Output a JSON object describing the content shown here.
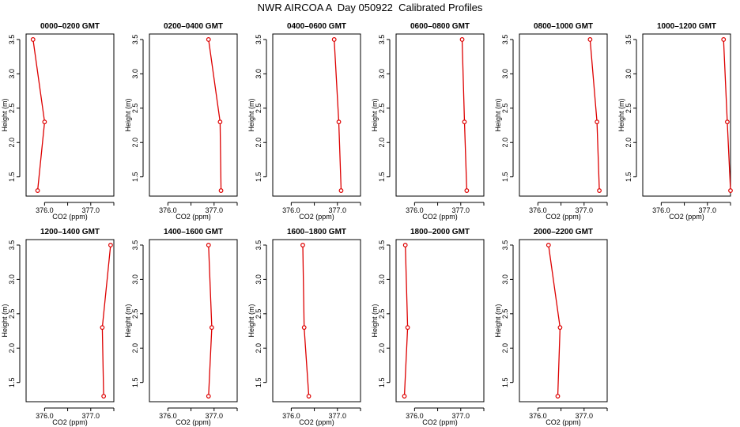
{
  "title": "NWR AIRCOA A  Day 050922  Calibrated Profiles",
  "chart_data": [
    {
      "type": "line",
      "title": "0000–0200 GMT",
      "xlabel": "CO2 (ppm)",
      "ylabel": "Height (m)",
      "xlim": [
        375.6,
        377.5
      ],
      "ylim": [
        1.22,
        3.58
      ],
      "x_ticks": [
        376.0,
        376.5,
        377.0,
        377.5
      ],
      "x_tick_labels": [
        "376.0",
        "",
        "377.0",
        ""
      ],
      "y_ticks": [
        1.5,
        2.0,
        2.5,
        3.0,
        3.5
      ],
      "y_tick_labels": [
        "1.5",
        "2.0",
        "2.5",
        "3.0",
        "3.5"
      ],
      "series": [
        {
          "name": "profile",
          "x": [
            375.85,
            376.0,
            375.75
          ],
          "y": [
            1.3,
            2.3,
            3.5
          ]
        }
      ]
    },
    {
      "type": "line",
      "title": "0200–0400 GMT",
      "xlabel": "CO2 (ppm)",
      "ylabel": "Height (m)",
      "xlim": [
        375.6,
        377.5
      ],
      "ylim": [
        1.22,
        3.58
      ],
      "x_ticks": [
        376.0,
        376.5,
        377.0,
        377.5
      ],
      "x_tick_labels": [
        "376.0",
        "",
        "377.0",
        ""
      ],
      "y_ticks": [
        1.5,
        2.0,
        2.5,
        3.0,
        3.5
      ],
      "y_tick_labels": [
        "1.5",
        "2.0",
        "2.5",
        "3.0",
        "3.5"
      ],
      "series": [
        {
          "name": "profile",
          "x": [
            377.15,
            377.13,
            376.88
          ],
          "y": [
            1.3,
            2.3,
            3.5
          ]
        }
      ]
    },
    {
      "type": "line",
      "title": "0400–0600 GMT",
      "xlabel": "CO2 (ppm)",
      "ylabel": "Height (m)",
      "xlim": [
        375.6,
        377.5
      ],
      "ylim": [
        1.22,
        3.58
      ],
      "x_ticks": [
        376.0,
        376.5,
        377.0,
        377.5
      ],
      "x_tick_labels": [
        "376.0",
        "",
        "377.0",
        ""
      ],
      "y_ticks": [
        1.5,
        2.0,
        2.5,
        3.0,
        3.5
      ],
      "y_tick_labels": [
        "1.5",
        "2.0",
        "2.5",
        "3.0",
        "3.5"
      ],
      "series": [
        {
          "name": "profile",
          "x": [
            377.08,
            377.03,
            376.93
          ],
          "y": [
            1.3,
            2.3,
            3.5
          ]
        }
      ]
    },
    {
      "type": "line",
      "title": "0600–0800 GMT",
      "xlabel": "CO2 (ppm)",
      "ylabel": "Height (m)",
      "xlim": [
        375.6,
        377.5
      ],
      "ylim": [
        1.22,
        3.58
      ],
      "x_ticks": [
        376.0,
        376.5,
        377.0,
        377.5
      ],
      "x_tick_labels": [
        "376.0",
        "",
        "377.0",
        ""
      ],
      "y_ticks": [
        1.5,
        2.0,
        2.5,
        3.0,
        3.5
      ],
      "y_tick_labels": [
        "1.5",
        "2.0",
        "2.5",
        "3.0",
        "3.5"
      ],
      "series": [
        {
          "name": "profile",
          "x": [
            377.13,
            377.08,
            377.03
          ],
          "y": [
            1.3,
            2.3,
            3.5
          ]
        }
      ]
    },
    {
      "type": "line",
      "title": "0800–1000 GMT",
      "xlabel": "CO2 (ppm)",
      "ylabel": "Height (m)",
      "xlim": [
        375.6,
        377.5
      ],
      "ylim": [
        1.22,
        3.58
      ],
      "x_ticks": [
        376.0,
        376.5,
        377.0,
        377.5
      ],
      "x_tick_labels": [
        "376.0",
        "",
        "377.0",
        ""
      ],
      "y_ticks": [
        1.5,
        2.0,
        2.5,
        3.0,
        3.5
      ],
      "y_tick_labels": [
        "1.5",
        "2.0",
        "2.5",
        "3.0",
        "3.5"
      ],
      "series": [
        {
          "name": "profile",
          "x": [
            377.33,
            377.28,
            377.13
          ],
          "y": [
            1.3,
            2.3,
            3.5
          ]
        }
      ]
    },
    {
      "type": "line",
      "title": "1000–1200 GMT",
      "xlabel": "CO2 (ppm)",
      "ylabel": "Height (m)",
      "xlim": [
        375.6,
        377.5
      ],
      "ylim": [
        1.22,
        3.58
      ],
      "x_ticks": [
        376.0,
        376.5,
        377.0,
        377.5
      ],
      "x_tick_labels": [
        "376.0",
        "",
        "377.0",
        ""
      ],
      "y_ticks": [
        1.5,
        2.0,
        2.5,
        3.0,
        3.5
      ],
      "y_tick_labels": [
        "1.5",
        "2.0",
        "2.5",
        "3.0",
        "3.5"
      ],
      "series": [
        {
          "name": "profile",
          "x": [
            377.5,
            377.43,
            377.35
          ],
          "y": [
            1.3,
            2.3,
            3.5
          ]
        }
      ]
    },
    {
      "type": "line",
      "title": "1200–1400 GMT",
      "xlabel": "CO2 (ppm)",
      "ylabel": "Height (m)",
      "xlim": [
        375.6,
        377.5
      ],
      "ylim": [
        1.22,
        3.58
      ],
      "x_ticks": [
        376.0,
        376.5,
        377.0,
        377.5
      ],
      "x_tick_labels": [
        "376.0",
        "",
        "377.0",
        ""
      ],
      "y_ticks": [
        1.5,
        2.0,
        2.5,
        3.0,
        3.5
      ],
      "y_tick_labels": [
        "1.5",
        "2.0",
        "2.5",
        "3.0",
        "3.5"
      ],
      "series": [
        {
          "name": "profile",
          "x": [
            377.28,
            377.25,
            377.43
          ],
          "y": [
            1.3,
            2.3,
            3.5
          ]
        }
      ]
    },
    {
      "type": "line",
      "title": "1400–1600 GMT",
      "xlabel": "CO2 (ppm)",
      "ylabel": "Height (m)",
      "xlim": [
        375.6,
        377.5
      ],
      "ylim": [
        1.22,
        3.58
      ],
      "x_ticks": [
        376.0,
        376.5,
        377.0,
        377.5
      ],
      "x_tick_labels": [
        "376.0",
        "",
        "377.0",
        ""
      ],
      "y_ticks": [
        1.5,
        2.0,
        2.5,
        3.0,
        3.5
      ],
      "y_tick_labels": [
        "1.5",
        "2.0",
        "2.5",
        "3.0",
        "3.5"
      ],
      "series": [
        {
          "name": "profile",
          "x": [
            376.88,
            376.95,
            376.88
          ],
          "y": [
            1.3,
            2.3,
            3.5
          ]
        }
      ]
    },
    {
      "type": "line",
      "title": "1600–1800 GMT",
      "xlabel": "CO2 (ppm)",
      "ylabel": "Height (m)",
      "xlim": [
        375.6,
        377.5
      ],
      "ylim": [
        1.22,
        3.58
      ],
      "x_ticks": [
        376.0,
        376.5,
        377.0,
        377.5
      ],
      "x_tick_labels": [
        "376.0",
        "",
        "377.0",
        ""
      ],
      "y_ticks": [
        1.5,
        2.0,
        2.5,
        3.0,
        3.5
      ],
      "y_tick_labels": [
        "1.5",
        "2.0",
        "2.5",
        "3.0",
        "3.5"
      ],
      "series": [
        {
          "name": "profile",
          "x": [
            376.38,
            376.28,
            376.25
          ],
          "y": [
            1.3,
            2.3,
            3.5
          ]
        }
      ]
    },
    {
      "type": "line",
      "title": "1800–2000 GMT",
      "xlabel": "CO2 (ppm)",
      "ylabel": "Height (m)",
      "xlim": [
        375.6,
        377.5
      ],
      "ylim": [
        1.22,
        3.58
      ],
      "x_ticks": [
        376.0,
        376.5,
        377.0,
        377.5
      ],
      "x_tick_labels": [
        "376.0",
        "",
        "377.0",
        ""
      ],
      "y_ticks": [
        1.5,
        2.0,
        2.5,
        3.0,
        3.5
      ],
      "y_tick_labels": [
        "1.5",
        "2.0",
        "2.5",
        "3.0",
        "3.5"
      ],
      "series": [
        {
          "name": "profile",
          "x": [
            375.78,
            375.85,
            375.8
          ],
          "y": [
            1.3,
            2.3,
            3.5
          ]
        }
      ]
    },
    {
      "type": "line",
      "title": "2000–2200 GMT",
      "xlabel": "CO2 (ppm)",
      "ylabel": "Height (m)",
      "xlim": [
        375.6,
        377.5
      ],
      "ylim": [
        1.22,
        3.58
      ],
      "x_ticks": [
        376.0,
        376.5,
        377.0,
        377.5
      ],
      "x_tick_labels": [
        "376.0",
        "",
        "377.0",
        ""
      ],
      "y_ticks": [
        1.5,
        2.0,
        2.5,
        3.0,
        3.5
      ],
      "y_tick_labels": [
        "1.5",
        "2.0",
        "2.5",
        "3.0",
        "3.5"
      ],
      "series": [
        {
          "name": "profile",
          "x": [
            376.43,
            376.48,
            376.23
          ],
          "y": [
            1.3,
            2.3,
            3.5
          ]
        }
      ]
    }
  ],
  "colors": {
    "line": "#dd0000",
    "axis": "#000000",
    "background": "#ffffff"
  }
}
